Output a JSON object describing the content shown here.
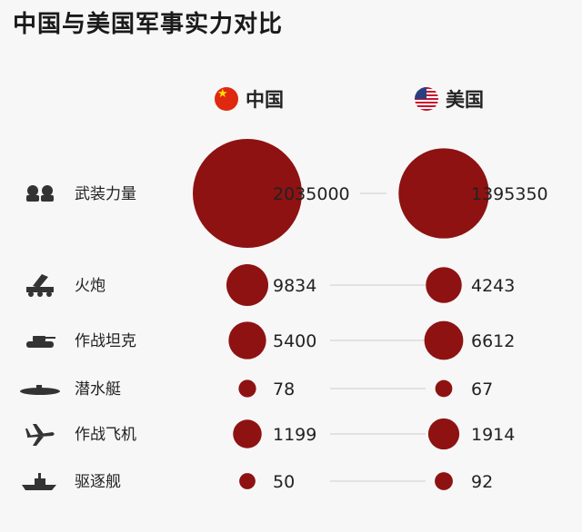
{
  "title": "中国与美国军事实力对比",
  "countries": [
    {
      "name": "中国",
      "flag": "cn-flag-icon"
    },
    {
      "name": "美国",
      "flag": "us-flag-icon"
    }
  ],
  "colors": {
    "bubble": "#8e1212",
    "line": "#d6d6d6",
    "icon": "#333333"
  },
  "chart_data": {
    "type": "bubble-comparison",
    "categories": [
      {
        "label": "武装力量",
        "icon": "soldiers-icon"
      },
      {
        "label": "火炮",
        "icon": "rocket-launcher-icon"
      },
      {
        "label": "作战坦克",
        "icon": "tank-icon"
      },
      {
        "label": "潜水艇",
        "icon": "submarine-icon"
      },
      {
        "label": "作战飞机",
        "icon": "fighter-jet-icon"
      },
      {
        "label": "驱逐舰",
        "icon": "destroyer-icon"
      }
    ],
    "series": [
      {
        "name": "中国",
        "values": [
          2035000,
          9834,
          5400,
          78,
          1199,
          50
        ]
      },
      {
        "name": "美国",
        "values": [
          1395350,
          4243,
          6612,
          67,
          1914,
          92
        ]
      }
    ]
  }
}
